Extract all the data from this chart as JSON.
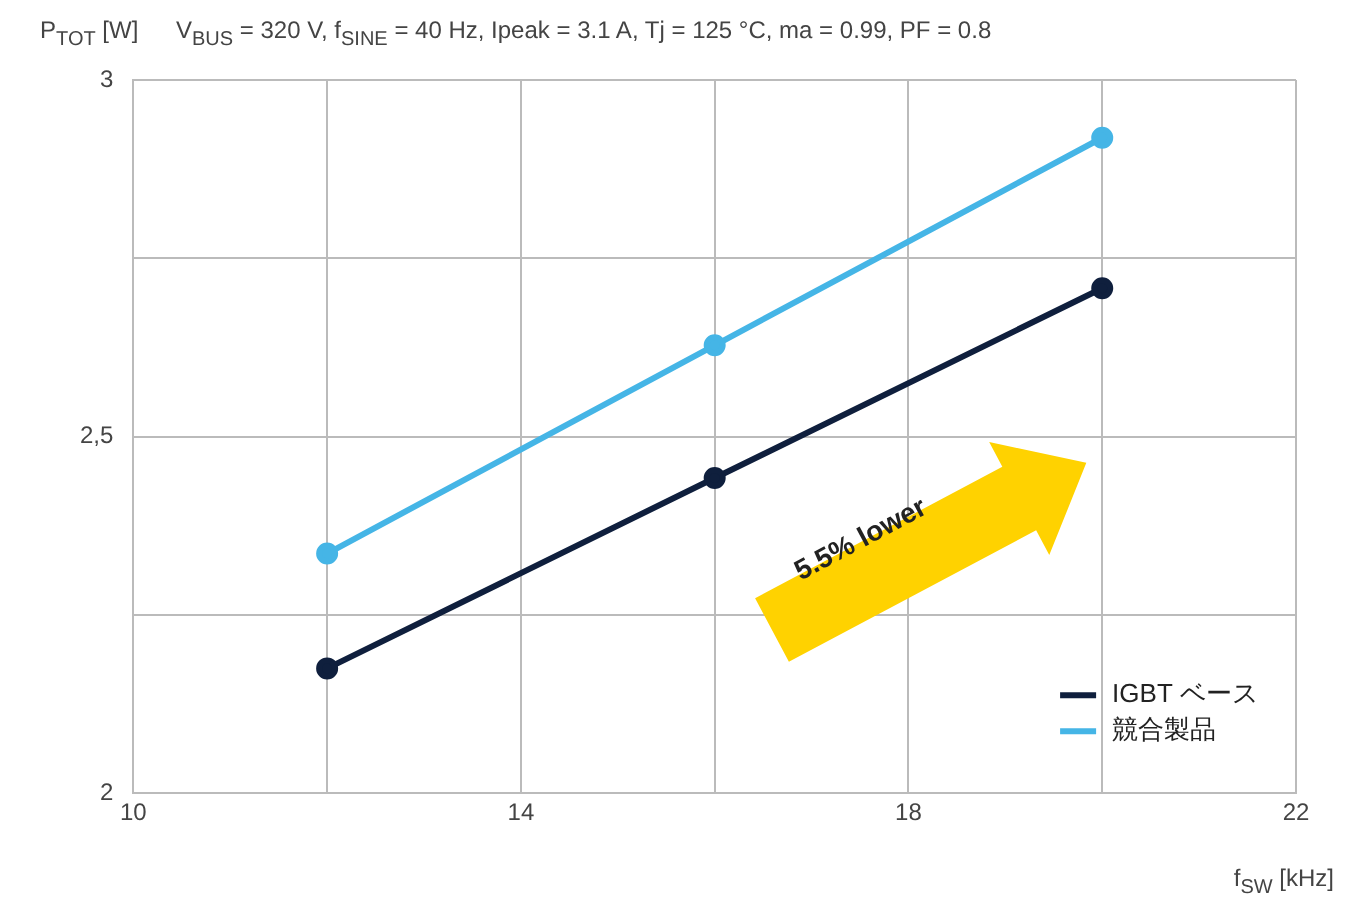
{
  "chart_data": {
    "type": "line",
    "title": "V$_{BUS}$ = 320 V, f$_{SINE}$ = 40 Hz, Ipeak = 3.1 A, Tj = 125 °C, ma = 0.99, PF = 0.8",
    "ylabel": "P$_{TOT}$ [W]",
    "xlabel": "f$_{SW}$ [kHz]",
    "x": [
      12,
      16,
      20
    ],
    "series": [
      {
        "name": "IGBT ベース",
        "color": "#0f1f3d",
        "values": [
          2.175,
          2.442,
          2.708
        ]
      },
      {
        "name": "競合製品",
        "color": "#45b5e6",
        "values": [
          2.336,
          2.628,
          2.919
        ]
      }
    ],
    "xlim": [
      10,
      22
    ],
    "xticks": [
      10,
      {
        "value": 12,
        "label": null
      },
      14,
      {
        "value": 16,
        "label": null
      },
      18,
      {
        "value": 20,
        "label": null
      },
      22
    ],
    "ylim": [
      2,
      3
    ],
    "yticks": [
      2,
      {
        "value": 2.25,
        "label": null
      },
      {
        "value": 2.5,
        "label": "2,5"
      },
      {
        "value": 2.75,
        "label": null
      },
      3
    ],
    "grid": true,
    "legend": "bottom right",
    "marker": "circle",
    "line_style": "solid",
    "annotations": [
      "5.5% lower"
    ]
  }
}
